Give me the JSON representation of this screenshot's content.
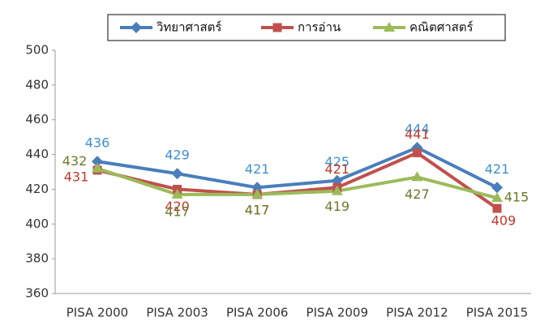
{
  "chart_data": {
    "type": "line",
    "categories": [
      "PISA 2000",
      "PISA 2003",
      "PISA 2006",
      "PISA 2009",
      "PISA 2012",
      "PISA 2015"
    ],
    "series": [
      {
        "name": "วิทยาศาสตร์",
        "color": "#4a7ebb",
        "marker": "diamond",
        "values": [
          436,
          429,
          421,
          425,
          444,
          421
        ]
      },
      {
        "name": "การอ่าน",
        "color": "#c0504d",
        "marker": "square",
        "values": [
          431,
          420,
          417,
          421,
          441,
          409
        ]
      },
      {
        "name": "คณิตศาสตร์",
        "color": "#9bbb59",
        "marker": "triangle",
        "values": [
          432,
          417,
          417,
          419,
          427,
          415
        ]
      }
    ],
    "ylim": [
      360,
      500
    ],
    "yticks": [
      360,
      380,
      400,
      420,
      440,
      460,
      480,
      500
    ],
    "grid": false,
    "legend": "top"
  }
}
